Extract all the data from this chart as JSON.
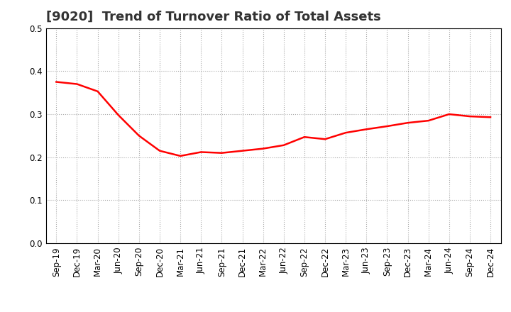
{
  "title": "[9020]  Trend of Turnover Ratio of Total Assets",
  "x_labels": [
    "Sep-19",
    "Dec-19",
    "Mar-20",
    "Jun-20",
    "Sep-20",
    "Dec-20",
    "Mar-21",
    "Jun-21",
    "Sep-21",
    "Dec-21",
    "Mar-22",
    "Jun-22",
    "Sep-22",
    "Dec-22",
    "Mar-23",
    "Jun-23",
    "Sep-23",
    "Dec-23",
    "Mar-24",
    "Jun-24",
    "Sep-24",
    "Dec-24"
  ],
  "values": [
    0.375,
    0.37,
    0.353,
    0.298,
    0.25,
    0.215,
    0.203,
    0.212,
    0.21,
    0.215,
    0.22,
    0.228,
    0.247,
    0.242,
    0.257,
    0.265,
    0.272,
    0.28,
    0.285,
    0.3,
    0.295,
    0.293
  ],
  "line_color": "#FF0000",
  "line_width": 1.8,
  "ylim": [
    0.0,
    0.5
  ],
  "yticks": [
    0.0,
    0.1,
    0.2,
    0.3,
    0.4,
    0.5
  ],
  "grid_color": "#aaaaaa",
  "grid_style": "dotted",
  "background_color": "#ffffff",
  "title_fontsize": 13,
  "tick_fontsize": 8.5
}
